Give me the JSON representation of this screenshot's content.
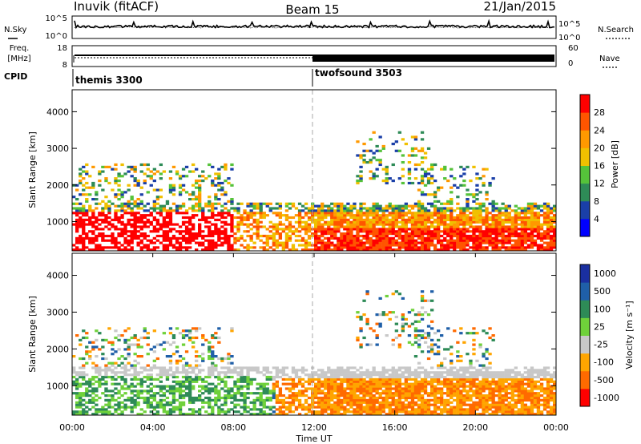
{
  "header": {
    "station": "Inuvik (fitACF)",
    "beam": "Beam 15",
    "date": "21/Jan/2015"
  },
  "noise_panel": {
    "left_label": "N.Sky",
    "left_ticks": [
      "10^5",
      "10^0"
    ],
    "right_label": "N.Search",
    "right_ticks": [
      "10^5",
      "10^0"
    ]
  },
  "freq_panel": {
    "left_label_1": "Freq.",
    "left_label_2": "[MHz]",
    "left_ticks": [
      "18",
      "8"
    ],
    "right_label": "Nave",
    "right_ticks": [
      "60",
      "0"
    ]
  },
  "cpid_panel": {
    "label": "CPID",
    "programs": [
      "themis 3300",
      "twofsound 3503"
    ]
  },
  "colors": {
    "power_scale": [
      "#0000ff",
      "#1a3fa8",
      "#2e8b57",
      "#55c23a",
      "#f0c000",
      "#ff9900",
      "#ff5500",
      "#ff0000"
    ],
    "velocity_scale": [
      "#ff0000",
      "#ff6a00",
      "#ffa500",
      "#c8c8c8",
      "#6fd13a",
      "#2e8b57",
      "#1f5fa8",
      "#1a2fa0"
    ],
    "divider": "#aaaaaa"
  },
  "chart_data": [
    {
      "type": "heatmap",
      "name": "power",
      "ylabel": "Slant Range [km]",
      "yticks": [
        "1000",
        "2000",
        "3000",
        "4000"
      ],
      "ylim": [
        200,
        4600
      ],
      "xlim": [
        0,
        24
      ],
      "colorbar": {
        "label": "Power [dB]",
        "ticks": [
          "4",
          "8",
          "12",
          "16",
          "20",
          "24",
          "28"
        ],
        "range": [
          0,
          32
        ]
      },
      "grid": false
    },
    {
      "type": "heatmap",
      "name": "velocity",
      "ylabel": "Slant Range [km]",
      "yticks": [
        "1000",
        "2000",
        "3000",
        "4000"
      ],
      "ylim": [
        200,
        4600
      ],
      "xlim": [
        0,
        24
      ],
      "xticks": [
        "00:00",
        "04:00",
        "08:00",
        "12:00",
        "16:00",
        "20:00",
        "00:00"
      ],
      "xlabel": "Time UT",
      "colorbar": {
        "label": "Velocity [m s⁻¹]",
        "ticks": [
          "1000",
          "500",
          "100",
          "25",
          "-25",
          "-100",
          "-500",
          "-1000"
        ]
      },
      "grid": false
    }
  ]
}
